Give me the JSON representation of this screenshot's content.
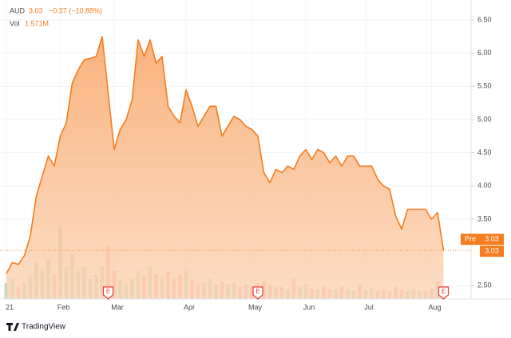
{
  "chart_data": {
    "type": "area",
    "categories": [
      "21",
      null,
      null,
      null,
      null,
      null,
      null,
      null,
      null,
      "Feb",
      null,
      null,
      null,
      null,
      null,
      null,
      null,
      null,
      "Mar",
      null,
      null,
      null,
      null,
      null,
      null,
      null,
      null,
      null,
      null,
      null,
      "Apr",
      null,
      null,
      null,
      null,
      null,
      null,
      null,
      null,
      null,
      null,
      "May",
      null,
      null,
      null,
      null,
      null,
      null,
      null,
      null,
      "Jun",
      null,
      null,
      null,
      null,
      null,
      null,
      null,
      null,
      null,
      "Jul",
      null,
      null,
      null,
      null,
      null,
      null,
      null,
      null,
      null,
      null,
      "Aug",
      null,
      null
    ],
    "series": [
      {
        "name": "AUD",
        "color": "#f57c1f",
        "values": [
          2.68,
          2.85,
          2.82,
          2.95,
          3.25,
          3.85,
          4.15,
          4.45,
          4.3,
          4.75,
          4.95,
          5.55,
          5.75,
          5.9,
          5.92,
          5.95,
          6.25,
          5.4,
          4.55,
          4.85,
          5.0,
          5.3,
          6.2,
          5.95,
          6.2,
          5.85,
          5.95,
          5.2,
          5.05,
          4.95,
          5.45,
          5.2,
          4.9,
          5.05,
          5.2,
          5.2,
          4.75,
          4.9,
          5.05,
          5.0,
          4.9,
          4.85,
          4.75,
          4.2,
          4.05,
          4.25,
          4.2,
          4.3,
          4.25,
          4.45,
          4.55,
          4.4,
          4.55,
          4.5,
          4.35,
          4.45,
          4.3,
          4.45,
          4.45,
          4.3,
          4.3,
          4.3,
          4.1,
          4.0,
          3.95,
          3.55,
          3.35,
          3.65,
          3.65,
          3.65,
          3.65,
          3.5,
          3.6,
          3.03
        ]
      }
    ],
    "volume": {
      "name": "Vol",
      "up_color": "rgba(120,180,120,0.45)",
      "down_color": "rgba(230,110,100,0.45)",
      "values": [
        2.0,
        2.5,
        1.5,
        2.0,
        2.8,
        4.5,
        3.5,
        5.0,
        3.0,
        9.0,
        4.0,
        5.5,
        3.5,
        4.0,
        2.5,
        3.0,
        4.0,
        6.5,
        3.5,
        2.5,
        2.0,
        2.5,
        3.5,
        3.0,
        4.0,
        3.2,
        2.8,
        3.5,
        2.5,
        3.0,
        3.5,
        2.5,
        2.0,
        2.0,
        2.5,
        1.8,
        2.2,
        1.8,
        2.0,
        1.5,
        1.8,
        1.5,
        2.0,
        2.2,
        1.8,
        1.5,
        1.5,
        1.2,
        2.5,
        1.5,
        1.8,
        1.3,
        1.2,
        1.5,
        1.3,
        1.2,
        1.5,
        1.2,
        1.0,
        1.8,
        1.2,
        1.3,
        1.0,
        1.2,
        1.0,
        1.5,
        1.2,
        1.0,
        1.2,
        1.0,
        1.0,
        1.3,
        2.2,
        1.571
      ]
    },
    "ylim": [
      2.3,
      6.74
    ],
    "yticks": [
      {
        "value": 2.5,
        "label": "2.50"
      },
      {
        "value": 3.5,
        "label": "3.50"
      },
      {
        "value": 4.0,
        "label": "4.00"
      },
      {
        "value": 4.5,
        "label": "4.50"
      },
      {
        "value": 5.0,
        "label": "5.00"
      },
      {
        "value": 5.5,
        "label": "5.50"
      },
      {
        "value": 6.0,
        "label": "6.00"
      },
      {
        "value": 6.5,
        "label": "6.50"
      }
    ],
    "grid": true
  },
  "legend": {
    "last": "3.03",
    "change": "−0.37 (−10.88%)",
    "vol": "1.571M"
  },
  "price_tag": {
    "session": "Pre",
    "value": "3.03",
    "last": "3.03"
  },
  "earnings": [
    {
      "index": 17,
      "label": "E"
    },
    {
      "index": 42,
      "label": "E"
    },
    {
      "index": 73,
      "label": "E"
    }
  ],
  "brand": "TradingView"
}
